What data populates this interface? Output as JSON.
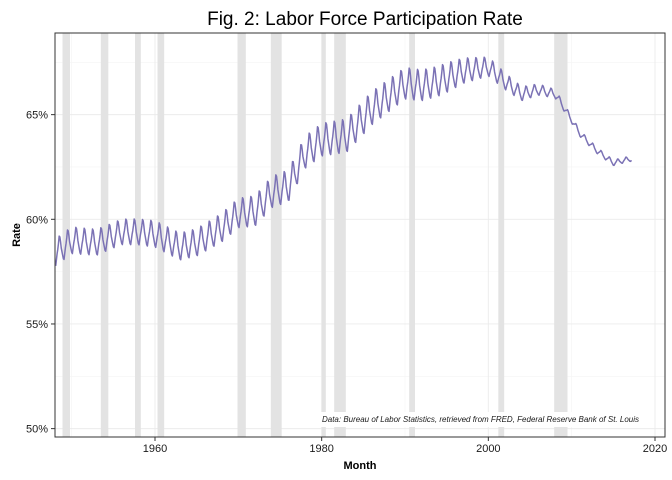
{
  "chart_data": {
    "type": "line",
    "title": "Fig. 2: Labor Force Participation Rate",
    "xlabel": "Month",
    "ylabel": "Rate",
    "x_range": [
      1948,
      2021.2
    ],
    "y_range": [
      49.6,
      68.9
    ],
    "x_ticks": [
      {
        "value": 1960,
        "label": "1960"
      },
      {
        "value": 1980,
        "label": "1980"
      },
      {
        "value": 2000,
        "label": "2000"
      },
      {
        "value": 2020,
        "label": "2020"
      }
    ],
    "y_ticks": [
      {
        "value": 50,
        "label": "50%"
      },
      {
        "value": 55,
        "label": "55%"
      },
      {
        "value": 60,
        "label": "60%"
      },
      {
        "value": 65,
        "label": "65%"
      }
    ],
    "grid": true,
    "legend": "none",
    "annotation": "Data: Bureau of Labor Statistics, retrieved from FRED, Federal Reserve Bank of St. Louis",
    "recessions": [
      [
        1948.9,
        1949.8
      ],
      [
        1953.5,
        1954.4
      ],
      [
        1957.6,
        1958.3
      ],
      [
        1960.3,
        1961.1
      ],
      [
        1969.9,
        1970.9
      ],
      [
        1973.9,
        1975.2
      ],
      [
        1980.0,
        1980.5
      ],
      [
        1981.5,
        1982.9
      ],
      [
        1990.5,
        1991.2
      ],
      [
        2001.2,
        2001.9
      ],
      [
        2007.9,
        2009.5
      ]
    ],
    "series": [
      {
        "color": "#7b72b5",
        "seasonal_amplitude": [
          [
            1948,
            1.3
          ],
          [
            1955,
            1.2
          ],
          [
            1965,
            1.3
          ],
          [
            1975,
            1.5
          ],
          [
            1985,
            1.6
          ],
          [
            1995,
            1.4
          ],
          [
            2000,
            0.9
          ],
          [
            2005,
            0.6
          ],
          [
            2008,
            0.4
          ],
          [
            2010,
            0.3
          ],
          [
            2017,
            0.25
          ]
        ],
        "trend": [
          [
            1948.0,
            58.4
          ],
          [
            1950.0,
            59.0
          ],
          [
            1953.0,
            58.9
          ],
          [
            1956.0,
            59.4
          ],
          [
            1958.0,
            59.4
          ],
          [
            1960.0,
            59.3
          ],
          [
            1963.0,
            58.7
          ],
          [
            1965.0,
            58.9
          ],
          [
            1968.0,
            59.6
          ],
          [
            1970.0,
            60.3
          ],
          [
            1972.0,
            60.4
          ],
          [
            1974.0,
            61.3
          ],
          [
            1976.0,
            61.6
          ],
          [
            1978.0,
            63.2
          ],
          [
            1980.0,
            63.8
          ],
          [
            1983.0,
            64.0
          ],
          [
            1986.0,
            65.3
          ],
          [
            1988.0,
            65.9
          ],
          [
            1990.0,
            66.5
          ],
          [
            1992.0,
            66.4
          ],
          [
            1994.0,
            66.6
          ],
          [
            1997.0,
            67.1
          ],
          [
            2000.0,
            67.3
          ],
          [
            2002.0,
            66.6
          ],
          [
            2004.0,
            66.0
          ],
          [
            2006.0,
            66.2
          ],
          [
            2008.0,
            66.0
          ],
          [
            2009.0,
            65.4
          ],
          [
            2011.0,
            64.1
          ],
          [
            2013.0,
            63.3
          ],
          [
            2015.0,
            62.7
          ],
          [
            2016.0,
            62.8
          ],
          [
            2017.2,
            62.9
          ]
        ]
      }
    ]
  }
}
